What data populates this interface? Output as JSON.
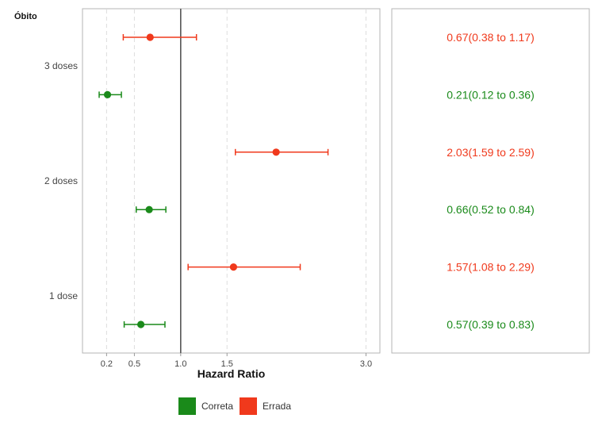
{
  "chart_data": {
    "type": "forest",
    "group_title": "Óbito",
    "xlabel": "Hazard Ratio",
    "x_ticks": [
      0.2,
      0.5,
      1.0,
      1.5,
      3.0
    ],
    "x_tick_labels": [
      "0.2",
      "0.5",
      "1.0",
      "1.5",
      "3.0"
    ],
    "xlim": [
      -0.06,
      3.15
    ],
    "reference_line": 1.0,
    "categories": [
      "3 doses",
      "2 doses",
      "1 dose"
    ],
    "rows": [
      {
        "category": "3 doses",
        "class": "Errada",
        "hr": 0.67,
        "lo": 0.38,
        "hi": 1.17,
        "label": "0.67(0.38 to 1.17)"
      },
      {
        "category": "3 doses",
        "class": "Correta",
        "hr": 0.21,
        "lo": 0.12,
        "hi": 0.36,
        "label": "0.21(0.12 to 0.36)"
      },
      {
        "category": "2 doses",
        "class": "Errada",
        "hr": 2.03,
        "lo": 1.59,
        "hi": 2.59,
        "label": "2.03(1.59 to 2.59)"
      },
      {
        "category": "2 doses",
        "class": "Correta",
        "hr": 0.66,
        "lo": 0.52,
        "hi": 0.84,
        "label": "0.66(0.52 to 0.84)"
      },
      {
        "category": "1 dose",
        "class": "Errada",
        "hr": 1.57,
        "lo": 1.08,
        "hi": 2.29,
        "label": "1.57(1.08 to 2.29)"
      },
      {
        "category": "1 dose",
        "class": "Correta",
        "hr": 0.57,
        "lo": 0.39,
        "hi": 0.83,
        "label": "0.57(0.39 to 0.83)"
      }
    ],
    "legend": [
      {
        "name": "Correta",
        "color": "#1a8a1a"
      },
      {
        "name": "Errada",
        "color": "#f0391c"
      }
    ],
    "colors": {
      "Correta": "#1a8a1a",
      "Errada": "#f0391c",
      "reference_line": "#555555",
      "grid": "#dddddd"
    },
    "grid": "vertical dashed",
    "legend_position": "bottom"
  }
}
